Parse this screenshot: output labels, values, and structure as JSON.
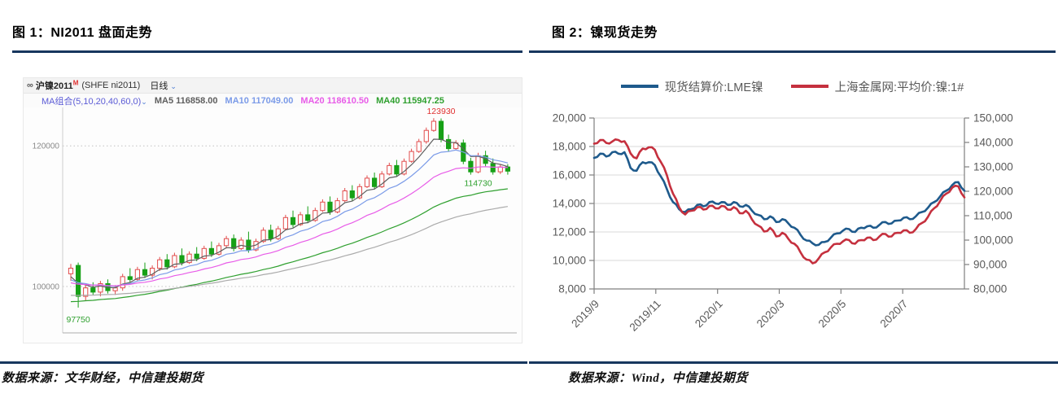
{
  "page": {
    "accent_rule_color": "#17375E"
  },
  "figure1": {
    "title": "图 1：NI2011 盘面走势",
    "source": "数据来源：文华财经，中信建投期货",
    "toolbar": {
      "logo_icon": "∞",
      "instrument": "沪镍2011",
      "instrument_sup": "M",
      "instrument_code": "(SHFE ni2011)",
      "period": "日线",
      "dropdown_icon": "⌄"
    },
    "ma_bar": {
      "label": "MA组合(5,10,20,40,60,0)",
      "dropdown_icon": "⌄",
      "items": [
        {
          "name": "MA5",
          "value": "116858.00"
        },
        {
          "name": "MA10",
          "value": "117049.00"
        },
        {
          "name": "MA20",
          "value": "118610.50"
        },
        {
          "name": "MA40",
          "value": "115947.25"
        }
      ]
    }
  },
  "figure2": {
    "title": "图 2：镍现货走势",
    "source": "数据来源：Wind，中信建投期货",
    "legend": [
      {
        "label": "现货结算价:LME镍",
        "color": "#1E5A8C"
      },
      {
        "label": "上海金属网:平均价:镍:1#",
        "color": "#C5303E"
      }
    ]
  },
  "chart_data": [
    {
      "type": "candlestick",
      "title": "NI2011 盘面走势",
      "period": "日线",
      "y_max": 125000,
      "y_min": 93400,
      "y_ticks": [
        {
          "v": 120000,
          "label": "120000"
        },
        {
          "v": 100000,
          "label": "100000"
        }
      ],
      "up_color": "#E14B4B",
      "down_color": "#16A016",
      "ma": {
        "windows": [
          5,
          10,
          20,
          40,
          60
        ],
        "colors": {
          "5": "#5E5E5E",
          "10": "#7B9BE8",
          "20": "#E85CE8",
          "40": "#2FA02F",
          "60": "#ABABAB"
        },
        "seed_offsets": {
          "5": -1800,
          "10": -2000,
          "20": -2300,
          "40": -5000,
          "60": -4000
        }
      },
      "annotations": [
        {
          "text": "123930",
          "color": "#E03030",
          "anchor_index": 50,
          "v": 123930,
          "dy": -5
        },
        {
          "text": "114730",
          "color": "#2FA02F",
          "anchor_index": 55,
          "v": 114730,
          "dy": 4
        },
        {
          "text": "97750",
          "color": "#2FA02F",
          "anchor_index": 1,
          "v": 96200,
          "dy": 11
        }
      ],
      "candles": [
        [
          101800,
          103200,
          100800,
          102600
        ],
        [
          103000,
          103400,
          97000,
          98600
        ],
        [
          98600,
          100400,
          98000,
          99800
        ],
        [
          99800,
          100600,
          98800,
          99200
        ],
        [
          99200,
          100800,
          98600,
          100400
        ],
        [
          100400,
          101000,
          99000,
          99400
        ],
        [
          99400,
          100200,
          98800,
          99800
        ],
        [
          99800,
          101800,
          99400,
          101400
        ],
        [
          101400,
          102600,
          100600,
          101000
        ],
        [
          101000,
          102800,
          100800,
          102400
        ],
        [
          102400,
          103400,
          101200,
          101600
        ],
        [
          101600,
          103000,
          101000,
          102600
        ],
        [
          102600,
          104200,
          102200,
          103800
        ],
        [
          103800,
          104600,
          102400,
          102800
        ],
        [
          102800,
          104800,
          102600,
          104400
        ],
        [
          104400,
          105400,
          103000,
          103400
        ],
        [
          103400,
          105000,
          103200,
          104600
        ],
        [
          104600,
          105600,
          103600,
          104000
        ],
        [
          104000,
          105800,
          103800,
          105400
        ],
        [
          105400,
          106400,
          104200,
          104600
        ],
        [
          104600,
          106200,
          104400,
          105800
        ],
        [
          105800,
          107200,
          105400,
          106800
        ],
        [
          106800,
          107400,
          105000,
          105400
        ],
        [
          105400,
          107000,
          105200,
          106600
        ],
        [
          106600,
          107800,
          104800,
          105200
        ],
        [
          105200,
          106800,
          105000,
          106400
        ],
        [
          106400,
          108400,
          106200,
          108000
        ],
        [
          108000,
          108800,
          106400,
          106800
        ],
        [
          106800,
          108600,
          106600,
          108200
        ],
        [
          108200,
          110200,
          108000,
          109800
        ],
        [
          109800,
          110800,
          108400,
          108800
        ],
        [
          108800,
          110600,
          108600,
          110200
        ],
        [
          110200,
          111400,
          109000,
          109400
        ],
        [
          109400,
          111200,
          109200,
          110800
        ],
        [
          110800,
          112400,
          110600,
          112000
        ],
        [
          112000,
          112800,
          110200,
          110600
        ],
        [
          110600,
          112600,
          110400,
          112200
        ],
        [
          112200,
          114000,
          112000,
          113600
        ],
        [
          113600,
          114400,
          112200,
          112600
        ],
        [
          112600,
          114600,
          112400,
          114200
        ],
        [
          114200,
          115800,
          114000,
          115400
        ],
        [
          115400,
          116200,
          113800,
          114200
        ],
        [
          114200,
          116400,
          114000,
          116000
        ],
        [
          116000,
          117600,
          115800,
          117200
        ],
        [
          117200,
          118000,
          115600,
          116000
        ],
        [
          116000,
          118200,
          115800,
          117800
        ],
        [
          117800,
          119600,
          117600,
          119200
        ],
        [
          119200,
          121000,
          119000,
          120600
        ],
        [
          120600,
          122600,
          120300,
          122200
        ],
        [
          122200,
          123930,
          122000,
          123500
        ],
        [
          123500,
          123900,
          120500,
          120900
        ],
        [
          120900,
          121600,
          119200,
          119600
        ],
        [
          119600,
          120800,
          119400,
          120400
        ],
        [
          120400,
          120900,
          117400,
          117800
        ],
        [
          117800,
          118300,
          115900,
          116300
        ],
        [
          116300,
          119000,
          116100,
          118600
        ],
        [
          118600,
          119300,
          117100,
          117500
        ],
        [
          117500,
          118200,
          115900,
          116300
        ],
        [
          116300,
          117300,
          116000,
          117000
        ],
        [
          117000,
          117400,
          115900,
          116400
        ]
      ]
    },
    {
      "type": "line",
      "title": "镍现货走势",
      "x_tick_labels": [
        "2019/9",
        "2019/11",
        "2020/1",
        "2020/3",
        "2020/5",
        "2020/7"
      ],
      "x_span_months": 12,
      "left_axis": {
        "max": 20000,
        "min": 8000,
        "ticks": [
          {
            "v": 20000,
            "label": "20,000"
          },
          {
            "v": 18000,
            "label": "18,000"
          },
          {
            "v": 16000,
            "label": "16,000"
          },
          {
            "v": 14000,
            "label": "14,000"
          },
          {
            "v": 12000,
            "label": "12,000"
          },
          {
            "v": 10000,
            "label": "10,000"
          },
          {
            "v": 8000,
            "label": "8,000"
          }
        ]
      },
      "right_axis": {
        "max": 150000,
        "min": 80000,
        "ticks": [
          {
            "v": 150000,
            "label": "150,000"
          },
          {
            "v": 140000,
            "label": "140,000"
          },
          {
            "v": 130000,
            "label": "130,000"
          },
          {
            "v": 120000,
            "label": "120,000"
          },
          {
            "v": 110000,
            "label": "110,000"
          },
          {
            "v": 100000,
            "label": "100,000"
          },
          {
            "v": 90000,
            "label": "90,000"
          },
          {
            "v": 80000,
            "label": "80,000"
          }
        ]
      },
      "series": [
        {
          "name": "现货结算价:LME镍",
          "axis": "left",
          "color": "#1E5A8C",
          "values": [
            17200,
            17500,
            17300,
            17600,
            17500,
            17600,
            16500,
            16300,
            16900,
            16900,
            16700,
            15900,
            15000,
            14100,
            13600,
            13400,
            13600,
            13900,
            13800,
            14100,
            14000,
            14100,
            13900,
            14100,
            13800,
            13900,
            13500,
            13200,
            12900,
            13100,
            12700,
            12900,
            12600,
            12300,
            11800,
            11400,
            11200,
            11100,
            11300,
            11600,
            11900,
            12100,
            12200,
            12000,
            12300,
            12400,
            12300,
            12500,
            12700,
            12600,
            12800,
            13000,
            12900,
            13100,
            13400,
            13700,
            14100,
            14500,
            14900,
            15300,
            15500,
            14900
          ]
        },
        {
          "name": "上海金属网:平均价:镍:1#",
          "axis": "right",
          "color": "#C5303E",
          "values": [
            139500,
            141000,
            139800,
            140400,
            141000,
            140500,
            135500,
            133500,
            137500,
            138000,
            137000,
            132000,
            126500,
            119000,
            113500,
            110500,
            112000,
            113500,
            112500,
            114000,
            113000,
            114000,
            112500,
            113500,
            111000,
            112000,
            108500,
            106000,
            103500,
            105000,
            101500,
            103000,
            100500,
            98500,
            95000,
            92000,
            90500,
            92500,
            95000,
            97000,
            98500,
            99500,
            100000,
            98500,
            100000,
            101000,
            100000,
            101500,
            102500,
            101500,
            103000,
            104000,
            103000,
            104500,
            107000,
            109500,
            113000,
            116000,
            119000,
            121500,
            122000,
            117500
          ]
        }
      ]
    }
  ]
}
